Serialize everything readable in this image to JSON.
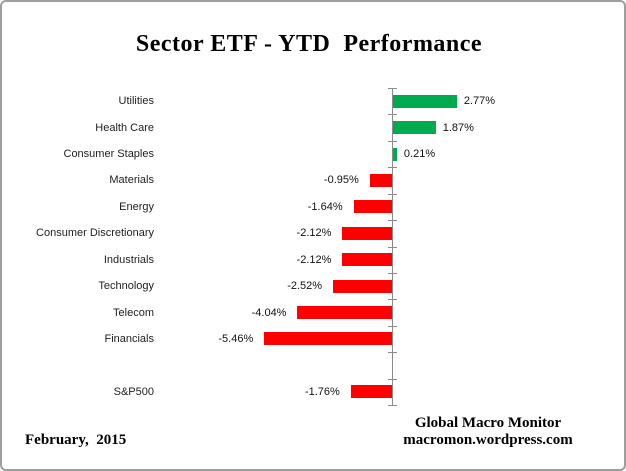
{
  "chart_data": {
    "type": "bar",
    "orientation": "horizontal",
    "title": "Sector ETF - YTD  Performance",
    "value_suffix": "%",
    "legend": "none",
    "grid": "off",
    "positive_color": "#00AB50",
    "negative_color": "#FF0000",
    "axis_color": "#8B8B8B",
    "categories": [
      "Utilities",
      "Health Care",
      "Consumer Staples",
      "Materials",
      "Energy",
      "Consumer Discretionary",
      "Industrials",
      "Technology",
      "Telecom",
      "Financials",
      "",
      "S&P500"
    ],
    "values": [
      2.77,
      1.87,
      0.21,
      -0.95,
      -1.64,
      -2.12,
      -2.12,
      -2.52,
      -4.04,
      -5.46,
      null,
      -1.76
    ],
    "rows": [
      {
        "category": "Utilities",
        "value": 2.77,
        "label": "2.77%"
      },
      {
        "category": "Health Care",
        "value": 1.87,
        "label": "1.87%"
      },
      {
        "category": "Consumer Staples",
        "value": 0.21,
        "label": "0.21%"
      },
      {
        "category": "Materials",
        "value": -0.95,
        "label": "-0.95%"
      },
      {
        "category": "Energy",
        "value": -1.64,
        "label": "-1.64%"
      },
      {
        "category": "Consumer Discretionary",
        "value": -2.12,
        "label": "-2.12%"
      },
      {
        "category": "Industrials",
        "value": -2.12,
        "label": "-2.12%"
      },
      {
        "category": "Technology",
        "value": -2.52,
        "label": "-2.52%"
      },
      {
        "category": "Telecom",
        "value": -4.04,
        "label": "-4.04%"
      },
      {
        "category": "Financials",
        "value": -5.46,
        "label": "-5.46%"
      },
      {
        "category": "",
        "value": null,
        "label": ""
      },
      {
        "category": "S&P500",
        "value": -1.76,
        "label": "-1.76%"
      }
    ]
  },
  "footer": {
    "date": "February,  2015",
    "credit_line1": "Global Macro Monitor",
    "credit_line2": "macromon.wordpress.com"
  }
}
